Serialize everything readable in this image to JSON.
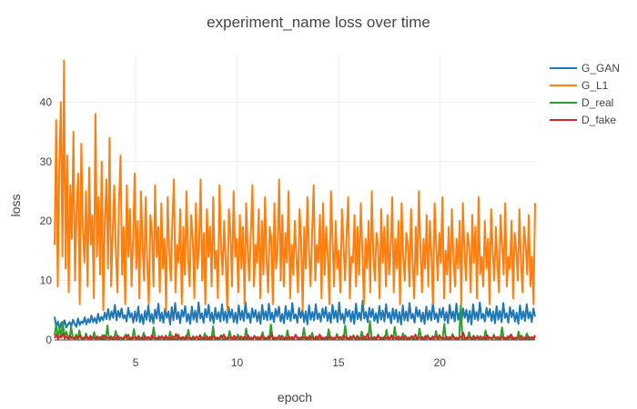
{
  "chart_data": {
    "type": "line",
    "title": "experiment_name loss over time",
    "xlabel": "epoch",
    "ylabel": "loss",
    "xlim": [
      1.0,
      24.7
    ],
    "ylim": [
      0,
      48
    ],
    "xticks": [
      5,
      10,
      15,
      20
    ],
    "yticks": [
      0,
      10,
      20,
      30,
      40
    ],
    "grid": true,
    "legend_position": "top-right",
    "x_start": 1.0,
    "x_end": 24.7,
    "series": [
      {
        "name": "G_GAN",
        "color": "#1f77b4",
        "values": [
          3.9,
          2.2,
          3.1,
          1.8,
          2.9,
          2.4,
          3.3,
          2.1,
          2.6,
          3.0,
          2.3,
          3.4,
          2.7,
          2.2,
          3.6,
          2.5,
          3.1,
          2.8,
          3.8,
          2.6,
          3.5,
          2.9,
          4.1,
          3.0,
          3.7,
          2.8,
          4.4,
          3.1,
          3.9,
          3.3,
          4.6,
          3.5,
          5.2,
          3.4,
          4.8,
          3.7,
          5.9,
          3.3,
          4.9,
          3.8,
          5.3,
          3.6,
          4.2,
          3.1,
          5.4,
          3.8,
          4.5,
          2.9,
          4.8,
          3.2,
          5.6,
          3.0,
          4.3,
          2.7,
          4.9,
          3.4,
          5.8,
          3.1,
          4.4,
          2.8,
          5.1,
          3.6,
          6.1,
          3.2,
          4.6,
          2.9,
          5.3,
          3.7,
          4.8,
          2.6,
          5.5,
          3.3,
          6.2,
          3.5,
          4.7,
          2.8,
          5.0,
          3.9,
          5.7,
          3.1,
          4.4,
          2.7,
          5.6,
          3.4,
          4.9,
          3.0,
          6.3,
          3.6,
          4.5,
          2.9,
          5.2,
          3.8,
          5.9,
          3.2,
          4.6,
          2.8,
          5.4,
          3.5,
          4.7,
          3.1,
          6.0,
          3.3,
          4.8,
          2.9,
          5.5,
          3.7,
          5.1,
          3.0,
          4.6,
          2.8,
          5.8,
          3.4,
          4.9,
          3.2,
          6.4,
          3.6,
          4.5,
          2.9,
          5.3,
          3.8,
          5.0,
          3.1,
          4.7,
          2.7,
          5.9,
          3.5,
          4.8,
          3.3,
          6.1,
          3.4,
          4.6,
          3.0,
          5.2,
          3.9,
          5.6,
          3.1,
          4.4,
          2.8,
          5.7,
          3.5,
          4.9,
          3.2,
          6.2,
          3.6,
          4.3,
          2.9,
          5.4,
          3.7,
          5.1,
          3.0,
          4.8,
          2.6,
          5.8,
          3.4,
          4.7,
          3.3,
          6.0,
          3.5,
          4.5,
          3.1,
          5.3,
          3.8,
          5.5,
          3.2,
          4.6,
          2.9,
          5.9,
          3.6,
          4.9,
          3.0,
          6.3,
          3.4,
          4.4,
          2.8,
          5.2,
          3.9,
          5.0,
          3.1,
          4.8,
          2.7,
          6.1,
          3.5,
          4.6,
          3.3,
          6.6,
          3.6,
          4.7,
          3.0,
          5.4,
          3.8,
          5.2,
          3.2,
          4.5,
          2.9,
          5.7,
          3.4,
          4.9,
          3.1,
          6.0,
          3.7,
          4.6,
          2.8,
          5.3,
          3.5,
          5.1,
          3.0,
          4.7,
          2.6,
          5.8,
          3.3,
          4.8,
          3.2,
          6.2,
          3.6,
          4.4,
          2.9,
          5.5,
          3.9,
          5.0,
          3.1,
          4.6,
          2.7,
          5.6,
          3.4,
          4.9,
          3.3,
          6.4,
          3.5,
          4.5,
          3.0,
          5.2,
          3.8,
          5.4,
          3.2,
          4.7,
          2.8,
          5.9,
          3.6,
          4.8,
          3.1,
          6.1,
          3.4,
          4.6,
          2.9,
          5.3,
          3.7,
          5.1,
          3.0,
          4.9,
          2.6,
          6.0,
          3.5,
          4.7,
          3.3,
          6.3,
          3.6,
          4.4,
          3.1,
          5.4,
          3.9,
          5.2,
          3.2,
          4.8,
          2.8,
          5.7,
          3.4,
          4.9,
          3.0,
          6.2,
          3.7,
          4.5,
          2.9,
          5.5,
          3.8,
          5.0,
          3.1,
          4.6,
          2.7,
          5.8,
          3.5,
          4.8,
          3.2,
          6.0,
          3.6,
          4.7,
          3.0,
          5.3,
          3.9
        ]
      },
      {
        "name": "G_L1",
        "color": "#ff7f0e",
        "values": [
          16,
          37,
          9,
          29,
          40,
          14,
          47,
          12,
          31,
          8,
          26,
          17,
          35,
          10,
          22,
          28,
          6,
          33,
          19,
          13,
          25,
          9,
          29,
          16,
          21,
          7,
          38,
          14,
          24,
          11,
          30,
          5,
          20,
          27,
          12,
          34,
          9,
          18,
          26,
          15,
          8,
          23,
          31,
          11,
          19,
          6,
          26,
          14,
          22,
          9,
          17,
          28,
          12,
          20,
          7,
          25,
          16,
          10,
          24,
          13,
          6,
          21,
          18,
          9,
          26,
          14,
          19,
          8,
          23,
          12,
          17,
          5,
          24,
          15,
          10,
          20,
          27,
          8,
          16,
          13,
          22,
          6,
          19,
          11,
          25,
          14,
          9,
          21,
          17,
          7,
          23,
          12,
          16,
          27,
          10,
          18,
          6,
          22,
          14,
          19,
          9,
          24,
          12,
          15,
          7,
          26,
          16,
          11,
          20,
          13,
          5,
          22,
          18,
          9,
          25,
          14,
          17,
          8,
          21,
          12,
          19,
          6,
          23,
          15,
          10,
          18,
          26,
          9,
          16,
          13,
          22,
          7,
          20,
          11,
          24,
          14,
          8,
          19,
          17,
          6,
          23,
          12,
          15,
          27,
          10,
          21,
          9,
          18,
          13,
          25,
          7,
          16,
          11,
          20,
          14,
          8,
          22,
          17,
          5,
          19,
          12,
          24,
          15,
          9,
          18,
          26,
          10,
          16,
          13,
          21,
          7,
          23,
          11,
          19,
          14,
          6,
          25,
          17,
          9,
          20,
          12,
          15,
          8,
          22,
          16,
          10,
          18,
          24,
          7,
          14,
          13,
          21,
          9,
          19,
          11,
          23,
          15,
          6,
          17,
          12,
          20,
          8,
          25,
          14,
          10,
          18,
          16,
          7,
          22,
          13,
          19,
          9,
          21,
          11,
          15,
          24,
          8,
          17,
          12,
          20,
          6,
          23,
          14,
          10,
          18,
          16,
          9,
          22,
          13,
          7,
          19,
          11,
          25,
          15,
          8,
          17,
          12,
          21,
          9,
          20,
          14,
          6,
          23,
          16,
          10,
          18,
          13,
          24,
          7,
          15,
          11,
          19,
          8,
          22,
          14,
          9,
          17,
          12,
          20,
          6,
          23,
          15,
          10,
          18,
          16,
          8,
          21,
          13,
          19,
          7,
          24,
          11,
          14,
          9,
          20,
          12,
          17,
          6,
          22,
          15,
          10,
          19,
          13,
          8,
          21,
          16,
          11,
          23,
          9,
          14,
          12,
          20,
          7,
          18,
          15,
          10,
          22,
          13,
          8,
          19,
          16,
          11,
          21,
          9,
          14,
          6,
          23
        ]
      },
      {
        "name": "D_real",
        "color": "#2ca02c",
        "values": [
          0.8,
          2.6,
          0.3,
          1.9,
          0.5,
          3.1,
          0.2,
          1.4,
          0.6,
          0.1,
          2.2,
          0.4,
          0.2,
          0.9,
          0.1,
          1.6,
          0.3,
          0.2,
          0.1,
          1.1,
          0.2,
          0.4,
          0.1,
          0.2,
          1.3,
          0.1,
          0.3,
          0.2,
          0.1,
          0.8,
          0.1,
          0.2,
          2.4,
          0.1,
          0.3,
          0.2,
          0.1,
          1.5,
          0.2,
          0.1,
          0.4,
          0.1,
          0.2,
          0.9,
          0.1,
          0.3,
          0.2,
          0.1,
          1.8,
          0.2,
          0.1,
          0.3,
          0.1,
          0.2,
          1.2,
          0.1,
          0.2,
          0.4,
          0.1,
          0.2,
          2.1,
          0.1,
          0.3,
          0.2,
          0.1,
          0.7,
          0.1,
          0.2,
          0.3,
          0.1,
          1.4,
          0.2,
          0.1,
          0.2,
          0.1,
          0.9,
          0.2,
          0.1,
          0.4,
          0.1,
          0.2,
          1.7,
          0.1,
          0.3,
          0.2,
          0.1,
          0.6,
          0.2,
          0.1,
          0.3,
          0.1,
          1.1,
          0.2,
          0.1,
          0.2,
          0.1,
          2.3,
          0.1,
          0.2,
          0.3,
          0.1,
          0.8,
          0.2,
          0.1,
          0.4,
          0.1,
          1.5,
          0.2,
          0.1,
          0.2,
          0.1,
          0.9,
          0.1,
          0.3,
          0.2,
          0.1,
          1.9,
          0.2,
          0.1,
          0.3,
          0.1,
          0.7,
          0.2,
          0.1,
          0.2,
          0.1,
          1.3,
          0.1,
          0.2,
          0.4,
          0.1,
          2.6,
          0.2,
          0.1,
          0.3,
          0.1,
          0.8,
          0.2,
          0.1,
          0.2,
          0.1,
          1.6,
          0.1,
          0.3,
          0.2,
          0.1,
          0.9,
          0.2,
          0.1,
          0.4,
          0.1,
          2.0,
          0.2,
          0.1,
          0.3,
          0.1,
          1.2,
          0.1,
          0.2,
          0.2,
          0.1,
          0.7,
          0.2,
          0.1,
          0.3,
          0.1,
          1.8,
          0.2,
          0.1,
          0.2,
          0.1,
          1.0,
          0.1,
          0.3,
          0.4,
          0.1,
          2.4,
          0.2,
          0.1,
          0.2,
          0.1,
          0.8,
          0.2,
          0.1,
          0.3,
          0.1,
          1.4,
          0.1,
          0.2,
          0.2,
          0.1,
          3.2,
          0.2,
          0.1,
          0.3,
          0.1,
          0.9,
          0.2,
          0.1,
          0.2,
          0.1,
          1.7,
          0.1,
          0.3,
          0.4,
          0.1,
          2.2,
          0.2,
          0.1,
          0.2,
          0.1,
          1.1,
          0.2,
          0.1,
          0.3,
          0.1,
          0.6,
          0.1,
          0.2,
          0.2,
          0.1,
          1.9,
          0.2,
          0.1,
          0.3,
          0.1,
          0.8,
          0.2,
          0.1,
          0.2,
          0.1,
          1.5,
          0.1,
          0.3,
          0.4,
          0.1,
          2.7,
          0.2,
          0.1,
          0.2,
          0.1,
          1.0,
          0.2,
          0.1,
          0.3,
          0.1,
          5.8,
          0.1,
          0.2,
          0.2,
          0.1,
          1.3,
          0.2,
          0.1,
          0.3,
          0.1,
          0.7,
          0.2,
          0.1,
          0.2,
          0.1,
          1.6,
          0.1,
          0.3,
          0.4,
          0.1,
          0.9,
          0.2,
          0.1,
          0.2,
          0.1,
          2.1,
          0.2,
          0.1,
          0.3,
          0.1,
          0.8,
          0.1,
          0.2,
          0.2,
          0.1,
          1.4,
          0.2,
          0.1,
          0.3,
          0.1,
          1.1,
          0.2,
          0.1,
          0.2,
          0.1,
          0.6
        ]
      },
      {
        "name": "D_fake",
        "color": "#d62728",
        "values": [
          0.3,
          0.9,
          0.2,
          0.6,
          0.4,
          1.1,
          0.3,
          0.5,
          0.2,
          0.7,
          0.3,
          0.4,
          0.2,
          0.6,
          0.3,
          0.8,
          0.2,
          0.4,
          0.3,
          0.5,
          0.2,
          0.7,
          0.3,
          0.4,
          0.2,
          0.6,
          0.3,
          0.5,
          0.2,
          0.8,
          0.3,
          0.4,
          0.2,
          0.6,
          0.3,
          0.5,
          0.2,
          0.7,
          0.3,
          0.4,
          0.2,
          0.6,
          0.3,
          0.9,
          0.2,
          0.4,
          0.3,
          0.5,
          0.2,
          0.7,
          0.3,
          0.4,
          0.2,
          0.6,
          0.3,
          0.5,
          0.2,
          0.8,
          0.3,
          0.4,
          0.2,
          0.6,
          0.3,
          0.5,
          0.2,
          0.7,
          0.3,
          0.4,
          0.2,
          0.6,
          0.3,
          1.0,
          0.2,
          0.4,
          0.3,
          0.5,
          0.2,
          0.7,
          0.3,
          0.4,
          0.2,
          0.6,
          0.3,
          0.5,
          0.2,
          0.8,
          0.3,
          0.4,
          0.2,
          0.6,
          0.3,
          0.5,
          0.2,
          0.7,
          0.3,
          0.4,
          0.2,
          0.6,
          0.3,
          0.9,
          0.2,
          0.4,
          0.3,
          0.5,
          0.2,
          0.7,
          0.3,
          0.4,
          0.2,
          0.6,
          0.3,
          0.5,
          0.2,
          0.8,
          0.3,
          0.4,
          0.2,
          0.6,
          0.3,
          0.5,
          0.2,
          0.7,
          0.3,
          0.4,
          0.2,
          0.6,
          0.3,
          1.1,
          0.2,
          0.4,
          0.3,
          0.5,
          0.2,
          0.7,
          0.3,
          0.4,
          0.2,
          0.6,
          0.3,
          0.5,
          0.2,
          0.8,
          0.3,
          0.4,
          0.2,
          0.6,
          0.3,
          0.5,
          0.2,
          0.7,
          0.3,
          0.4,
          0.2,
          0.6,
          0.3,
          0.9,
          0.2,
          0.4,
          0.3,
          0.5,
          0.2,
          0.7,
          0.3,
          0.4,
          0.2,
          0.6,
          0.3,
          0.5,
          0.2,
          0.8,
          0.3,
          0.4,
          0.2,
          0.6,
          0.3,
          0.5,
          0.2,
          0.7,
          0.3,
          0.4,
          0.2,
          0.6,
          0.3,
          1.0,
          0.2,
          0.4,
          0.3,
          0.5,
          0.2,
          0.7,
          0.3,
          0.4,
          0.2,
          0.6,
          0.3,
          0.5,
          0.2,
          0.8,
          0.3,
          0.4,
          0.2,
          0.6,
          0.3,
          0.5,
          0.2,
          0.7,
          0.3,
          0.4,
          0.2,
          0.6,
          0.3,
          0.9,
          0.2,
          0.4,
          0.3,
          0.5,
          0.2,
          0.7,
          0.3,
          0.4,
          0.2,
          0.6,
          0.3,
          0.5,
          0.2,
          0.8,
          0.3,
          0.4,
          0.2,
          0.6,
          0.3,
          0.5,
          0.2,
          0.7,
          0.3,
          0.4,
          0.2,
          0.6,
          0.3,
          1.2,
          0.2,
          0.4,
          0.3,
          0.5,
          0.2,
          0.7,
          0.3,
          0.4,
          0.2,
          0.6,
          0.3,
          0.5,
          0.2,
          0.8,
          0.3,
          0.4,
          0.2,
          0.6,
          0.3,
          0.5,
          0.2,
          0.7,
          0.3,
          0.4,
          0.2,
          0.6,
          0.3,
          0.9,
          0.2,
          0.4,
          0.3,
          0.5,
          0.2,
          0.7,
          0.3,
          0.4,
          0.2,
          0.6,
          0.3,
          0.5,
          0.2,
          0.8
        ]
      }
    ]
  }
}
